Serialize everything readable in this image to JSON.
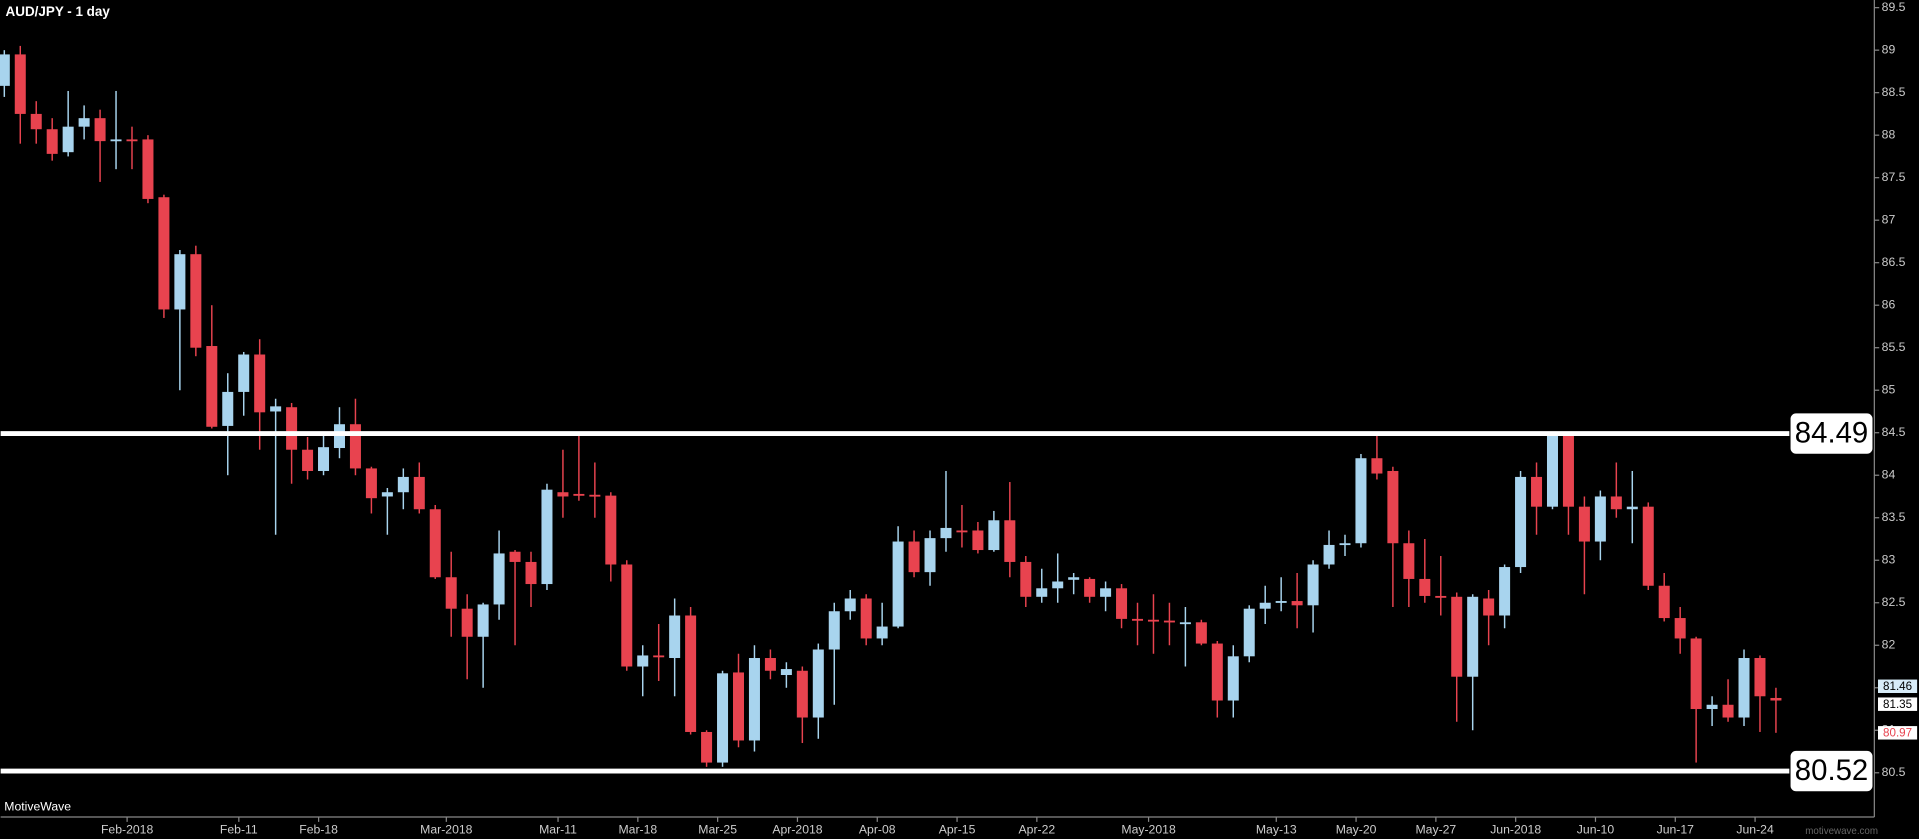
{
  "chart_data": {
    "type": "candlestick",
    "title": "AUD/JPY - 1 day",
    "brand": "MotiveWave",
    "watermark": "motivewave.com",
    "up_color": "#a8d4ee",
    "down_color": "#e8434f",
    "ylim": [
      79.98,
      89.59
    ],
    "yticks": [
      80.5,
      81,
      81.5,
      82,
      82.5,
      83,
      83.5,
      84,
      84.5,
      85,
      85.5,
      86,
      86.5,
      87,
      87.5,
      88,
      88.5,
      89,
      89.5
    ],
    "hlines": [
      84.49,
      80.52
    ],
    "price_labels": [
      81.46,
      81.35,
      80.97
    ],
    "categories": [
      null,
      null,
      null,
      null,
      null,
      null,
      null,
      null,
      "Feb-2018",
      null,
      null,
      null,
      null,
      null,
      null,
      "Feb-11",
      null,
      null,
      null,
      null,
      "Feb-18",
      null,
      null,
      null,
      null,
      null,
      null,
      null,
      "Mar-2018",
      null,
      null,
      null,
      null,
      null,
      null,
      "Mar-11",
      null,
      null,
      null,
      null,
      "Mar-18",
      null,
      null,
      null,
      null,
      "Mar-25",
      null,
      null,
      null,
      null,
      "Apr-2018",
      null,
      null,
      null,
      null,
      "Apr-08",
      null,
      null,
      null,
      null,
      "Apr-15",
      null,
      null,
      null,
      null,
      "Apr-22",
      null,
      null,
      null,
      null,
      null,
      null,
      "May-2018",
      null,
      null,
      null,
      null,
      null,
      null,
      null,
      "May-13",
      null,
      null,
      null,
      null,
      "May-20",
      null,
      null,
      null,
      null,
      "May-27",
      null,
      null,
      null,
      null,
      "Jun-2018",
      null,
      null,
      null,
      null,
      "Jun-10",
      null,
      null,
      null,
      null,
      "Jun-17",
      null,
      null,
      null,
      null,
      "Jun-24",
      null
    ],
    "open": [
      88.58,
      88.95,
      88.25,
      88.07,
      87.8,
      88.1,
      88.2,
      87.93,
      87.95,
      87.95,
      87.27,
      85.95,
      86.6,
      85.52,
      84.58,
      84.98,
      85.42,
      84.75,
      84.8,
      84.3,
      84.05,
      84.32,
      84.6,
      84.08,
      83.75,
      83.8,
      83.98,
      83.6,
      82.8,
      82.43,
      82.1,
      82.48,
      83.1,
      82.98,
      82.72,
      83.8,
      83.78,
      83.77,
      83.76,
      82.95,
      81.75,
      81.88,
      81.85,
      82.35,
      80.98,
      80.62,
      81.68,
      80.88,
      81.85,
      81.65,
      81.7,
      81.15,
      81.95,
      82.4,
      82.55,
      82.08,
      82.22,
      83.22,
      82.86,
      83.26,
      83.35,
      83.35,
      83.12,
      83.47,
      82.98,
      82.57,
      82.67,
      82.77,
      82.78,
      82.57,
      82.67,
      82.31,
      82.3,
      82.29,
      82.25,
      82.27,
      82.02,
      81.35,
      81.87,
      82.43,
      82.5,
      82.52,
      82.47,
      82.95,
      83.18,
      83.2,
      84.2,
      84.05,
      83.2,
      82.78,
      82.58,
      82.57,
      81.63,
      82.55,
      82.35,
      82.92,
      83.98,
      83.63,
      84.49,
      83.63,
      83.22,
      83.75,
      83.6,
      83.63,
      82.7,
      82.32,
      82.08,
      81.25,
      81.3,
      81.15,
      81.85,
      81.38
    ],
    "high": [
      89.0,
      89.05,
      88.4,
      88.2,
      88.52,
      88.35,
      88.3,
      88.52,
      88.1,
      88.0,
      87.3,
      86.65,
      86.7,
      86.0,
      85.2,
      85.45,
      85.6,
      84.9,
      84.85,
      84.45,
      84.5,
      84.8,
      84.9,
      84.1,
      83.85,
      84.08,
      84.15,
      83.65,
      83.1,
      82.6,
      82.5,
      83.35,
      83.12,
      83.1,
      83.9,
      84.3,
      84.49,
      84.15,
      83.8,
      83.0,
      82.0,
      82.25,
      82.55,
      82.45,
      81.0,
      81.7,
      81.9,
      82.0,
      81.95,
      81.8,
      81.75,
      82.02,
      82.5,
      82.65,
      82.6,
      82.5,
      83.4,
      83.35,
      83.35,
      84.05,
      83.65,
      83.45,
      83.58,
      83.92,
      83.05,
      82.9,
      83.08,
      82.85,
      82.8,
      82.75,
      82.72,
      82.5,
      82.6,
      82.5,
      82.45,
      82.3,
      82.05,
      82.0,
      82.47,
      82.7,
      82.8,
      82.85,
      83.0,
      83.35,
      83.3,
      84.25,
      84.49,
      84.1,
      83.35,
      83.25,
      83.05,
      82.62,
      82.6,
      82.65,
      82.95,
      84.05,
      84.15,
      84.49,
      84.49,
      83.75,
      83.82,
      84.15,
      84.05,
      83.68,
      82.85,
      82.45,
      82.1,
      81.4,
      81.6,
      81.95,
      81.88,
      81.5
    ],
    "low": [
      88.45,
      87.9,
      87.9,
      87.7,
      87.75,
      87.95,
      87.45,
      87.6,
      87.6,
      87.2,
      85.85,
      85.0,
      85.4,
      84.55,
      84.0,
      84.7,
      84.3,
      83.3,
      83.9,
      83.95,
      84.0,
      84.2,
      84.0,
      83.55,
      83.3,
      83.6,
      83.55,
      82.78,
      82.1,
      81.6,
      81.5,
      82.3,
      82.0,
      82.45,
      82.65,
      83.5,
      83.7,
      83.5,
      82.75,
      81.7,
      81.4,
      81.58,
      81.4,
      80.95,
      80.57,
      80.57,
      80.8,
      80.75,
      81.6,
      81.5,
      80.85,
      80.9,
      81.3,
      82.3,
      82.0,
      82.0,
      82.2,
      82.8,
      82.7,
      83.1,
      83.15,
      83.08,
      83.1,
      82.8,
      82.45,
      82.5,
      82.5,
      82.6,
      82.5,
      82.4,
      82.2,
      82.0,
      81.9,
      82.0,
      81.75,
      82.0,
      81.15,
      81.15,
      81.8,
      82.25,
      82.4,
      82.2,
      82.15,
      82.9,
      83.05,
      83.15,
      83.95,
      82.45,
      82.45,
      82.5,
      82.35,
      81.1,
      81.0,
      82.0,
      82.2,
      82.85,
      83.3,
      83.6,
      83.3,
      82.6,
      83.0,
      83.5,
      83.2,
      82.65,
      82.28,
      81.9,
      80.62,
      81.05,
      81.1,
      81.05,
      80.98,
      80.97
    ],
    "close": [
      88.95,
      88.25,
      88.07,
      87.78,
      88.1,
      88.2,
      87.93,
      87.95,
      87.93,
      87.25,
      85.95,
      86.6,
      85.5,
      84.57,
      84.98,
      85.42,
      84.74,
      84.81,
      84.3,
      84.05,
      84.33,
      84.6,
      84.08,
      83.73,
      83.8,
      83.98,
      83.6,
      82.8,
      82.43,
      82.1,
      82.48,
      83.08,
      82.98,
      82.72,
      83.83,
      83.75,
      83.76,
      83.76,
      82.95,
      81.75,
      81.88,
      81.86,
      82.35,
      80.98,
      80.62,
      81.67,
      80.88,
      81.85,
      81.7,
      81.72,
      81.15,
      81.95,
      82.4,
      82.55,
      82.08,
      82.22,
      83.22,
      82.86,
      83.26,
      83.38,
      83.34,
      83.12,
      83.47,
      82.98,
      82.57,
      82.67,
      82.75,
      82.8,
      82.57,
      82.67,
      82.31,
      82.3,
      82.29,
      82.28,
      82.27,
      82.02,
      81.35,
      81.87,
      82.43,
      82.5,
      82.52,
      82.47,
      82.95,
      83.18,
      83.2,
      84.2,
      84.02,
      83.2,
      82.78,
      82.58,
      82.57,
      81.63,
      82.57,
      82.35,
      82.92,
      83.98,
      83.63,
      84.49,
      83.63,
      83.22,
      83.75,
      83.6,
      83.63,
      82.7,
      82.32,
      82.08,
      81.25,
      81.3,
      81.15,
      81.85,
      81.4,
      81.35
    ]
  }
}
